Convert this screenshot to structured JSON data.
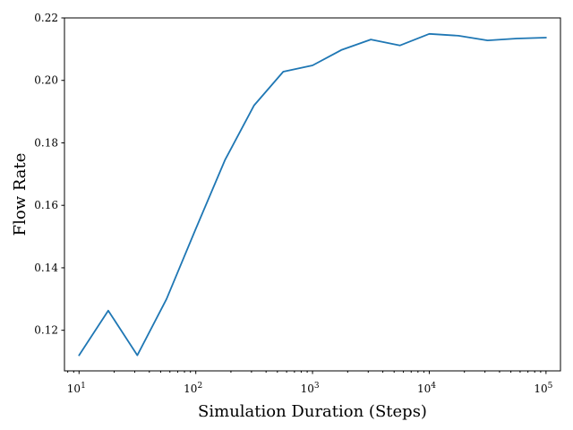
{
  "chart_data": {
    "type": "line",
    "title": "",
    "xlabel": "Simulation Duration (Steps)",
    "ylabel": "Flow Rate",
    "xscale": "log",
    "xlim": [
      7.5,
      133000
    ],
    "ylim": [
      0.107,
      0.22
    ],
    "grid": false,
    "x_ticks": [
      {
        "value": 10,
        "base": "10",
        "exp": "1"
      },
      {
        "value": 100,
        "base": "10",
        "exp": "2"
      },
      {
        "value": 1000,
        "base": "10",
        "exp": "3"
      },
      {
        "value": 10000,
        "base": "10",
        "exp": "4"
      },
      {
        "value": 100000,
        "base": "10",
        "exp": "5"
      }
    ],
    "y_ticks": [
      "0.12",
      "0.14",
      "0.16",
      "0.18",
      "0.20",
      "0.22"
    ],
    "series": [
      {
        "color": "#1f77b4",
        "x": [
          10,
          17.8,
          31.6,
          56.2,
          100,
          178,
          316,
          562,
          1000,
          1780,
          3160,
          5620,
          10000,
          17800,
          31600,
          56200,
          100000
        ],
        "y": [
          0.112,
          0.1263,
          0.112,
          0.13,
          0.1525,
          0.1745,
          0.192,
          0.2028,
          0.2048,
          0.2098,
          0.2131,
          0.2112,
          0.2149,
          0.2143,
          0.2128,
          0.2134,
          0.2137
        ]
      }
    ]
  }
}
